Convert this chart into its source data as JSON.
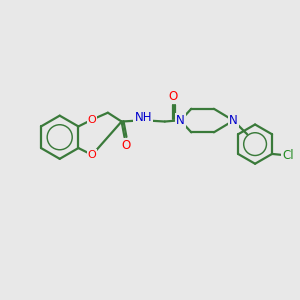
{
  "bg_color": "#e8e8e8",
  "bond_color": "#3a7a3a",
  "bond_width": 1.6,
  "atom_colors": {
    "O": "#ff0000",
    "N": "#0000cc",
    "Cl": "#228B22",
    "C": "#3a7a3a",
    "H": "#888888"
  },
  "figsize": [
    3.0,
    3.0
  ],
  "dpi": 100
}
